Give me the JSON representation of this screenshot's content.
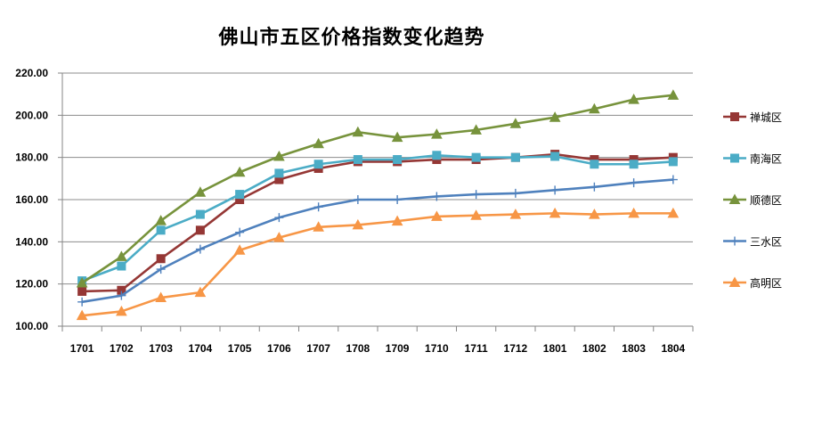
{
  "chart_data": {
    "type": "line",
    "title": "佛山市五区价格指数变化趋势",
    "xlabel": "",
    "ylabel": "",
    "categories": [
      "1701",
      "1702",
      "1703",
      "1704",
      "1705",
      "1706",
      "1707",
      "1708",
      "1709",
      "1710",
      "1711",
      "1712",
      "1801",
      "1802",
      "1803",
      "1804"
    ],
    "ylim": [
      100,
      220
    ],
    "yticks": [
      "100.00",
      "120.00",
      "140.00",
      "160.00",
      "180.00",
      "200.00",
      "220.00"
    ],
    "grid": true,
    "legend_position": "right",
    "series": [
      {
        "name": "禅城区",
        "color": "#953735",
        "marker": "square",
        "values": [
          116.5,
          117.0,
          132.0,
          145.5,
          160.0,
          169.5,
          174.8,
          178.0,
          178.0,
          179.0,
          179.0,
          180.0,
          181.5,
          179.0,
          179.0,
          180.0
        ]
      },
      {
        "name": "南海区",
        "color": "#4bacc6",
        "marker": "square",
        "values": [
          121.5,
          128.5,
          145.5,
          153.0,
          162.5,
          172.5,
          176.8,
          179.0,
          179.0,
          181.0,
          180.0,
          180.0,
          180.5,
          176.8,
          176.8,
          178.0
        ]
      },
      {
        "name": "顺德区",
        "color": "#77933c",
        "marker": "triangle",
        "values": [
          120.5,
          133.0,
          150.0,
          163.5,
          173.0,
          180.5,
          186.5,
          192.0,
          189.5,
          191.0,
          193.0,
          196.0,
          199.0,
          203.0,
          207.5,
          209.5
        ]
      },
      {
        "name": "三水区",
        "color": "#4f81bd",
        "marker": "plus",
        "values": [
          111.5,
          114.5,
          127.0,
          136.5,
          144.5,
          151.5,
          156.5,
          160.0,
          160.0,
          161.5,
          162.5,
          163.0,
          164.5,
          166.0,
          168.0,
          169.5
        ]
      },
      {
        "name": "高明区",
        "color": "#f79646",
        "marker": "triangle",
        "values": [
          105.0,
          107.0,
          113.5,
          116.0,
          136.0,
          142.0,
          147.0,
          148.0,
          149.8,
          152.0,
          152.5,
          153.0,
          153.5,
          153.0,
          153.5,
          153.5
        ]
      }
    ]
  }
}
